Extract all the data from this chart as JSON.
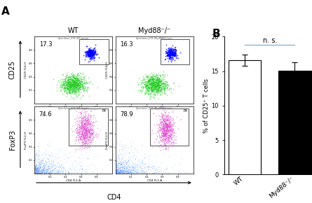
{
  "panel_A_label": "A",
  "panel_B_label": "B",
  "col_labels": [
    "WT",
    "Myd88⁻/⁻"
  ],
  "row_label_top": "CD25",
  "row_label_bottom": "FoxP3",
  "x_label": "CD4",
  "flow_plots": [
    {
      "row": 0,
      "col": 0,
      "pct": "17.3",
      "header": "Specimen_001-WT-tumor",
      "xlabel": "CD4 FL1-H",
      "ylabel": "CD25 FL4-H"
    },
    {
      "row": 0,
      "col": 1,
      "pct": "16.3",
      "header": "Specimen_001-Myd88KO-tum",
      "xlabel": "CD4 FL1-H",
      "ylabel": "CD25 FL4-H"
    },
    {
      "row": 1,
      "col": 0,
      "pct": "74.6",
      "header": "Specimen_001-WT-tumor",
      "gate_label": "P4",
      "xlabel": "CD4 FL1-A",
      "ylabel": "FoxP3 FL2-H"
    },
    {
      "row": 1,
      "col": 1,
      "pct": "78.9",
      "header": "Specimen_001-Myd88KO-tum",
      "gate_label": "P4",
      "xlabel": "CD4 FL1-A",
      "ylabel": "FoxP3 FL2-H"
    }
  ],
  "bar_categories": [
    "WT",
    "Myd88⁻/⁻"
  ],
  "bar_values": [
    16.6,
    15.1
  ],
  "bar_errors": [
    0.8,
    1.2
  ],
  "bar_colors": [
    "white",
    "black"
  ],
  "bar_edge_color": "black",
  "ylabel": "% of CD25⁺ T cells",
  "ylim": [
    0,
    20
  ],
  "yticks": [
    0,
    5,
    10,
    15,
    20
  ],
  "sig_text": "n. s.",
  "sig_line_color": "#7bafd4",
  "background_color": "white"
}
